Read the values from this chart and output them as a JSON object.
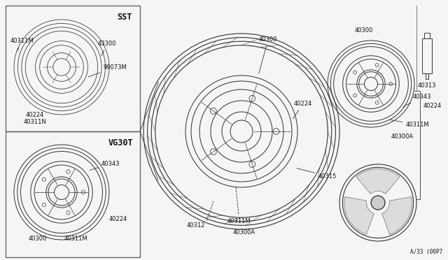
{
  "bg_color": "#f5f5f5",
  "line_color": "#333333",
  "text_color": "#111111",
  "border_color": "#666666",
  "diagram_code": "A/33 (00P7",
  "SST_label": "SST",
  "VG30T_label": "VG30T",
  "fig_width": 6.4,
  "fig_height": 3.72,
  "dpi": 100
}
